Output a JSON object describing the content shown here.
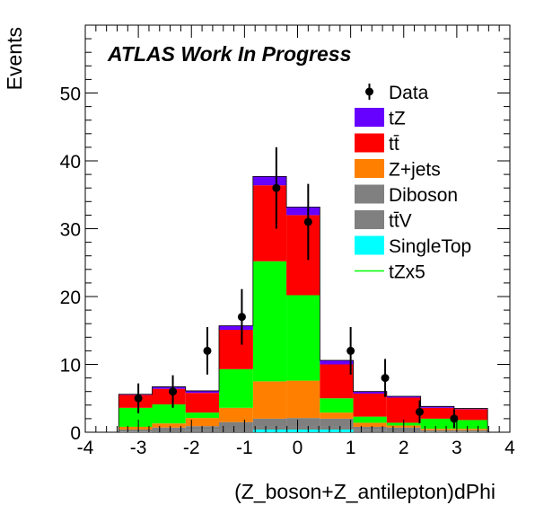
{
  "chart_data": {
    "type": "bar",
    "stacked": true,
    "title": "",
    "atlas_label": "ATLAS Work In Progress",
    "xlabel": "(Z_boson+Z_antilepton)dPhi",
    "ylabel": "Events",
    "xlim": [
      -4,
      4
    ],
    "ylim": [
      0,
      60
    ],
    "bin_edges": [
      -4.0,
      -3.37,
      -2.74,
      -2.11,
      -1.48,
      -0.84,
      -0.21,
      0.42,
      1.05,
      1.68,
      2.32,
      2.95,
      3.58,
      4.0
    ],
    "x_ticks": [
      -4,
      -3,
      -2,
      -1,
      0,
      1,
      2,
      3,
      4
    ],
    "x_tick_labels": [
      "-4",
      "-3",
      "-2",
      "-1",
      "0",
      "1",
      "2",
      "3",
      "4"
    ],
    "y_ticks": [
      0,
      10,
      20,
      30,
      40,
      50
    ],
    "y_tick_labels": [
      "0",
      "10",
      "20",
      "30",
      "40",
      "50"
    ],
    "series": [
      {
        "name": "SingleTop",
        "color": "#00ffff",
        "values": [
          0,
          0,
          0,
          0,
          0,
          0.4,
          0.4,
          0.4,
          0,
          0,
          0,
          0,
          0
        ]
      },
      {
        "name": "ttV",
        "color": "#808080",
        "values": [
          0,
          0.1,
          0.2,
          0.3,
          0.4,
          0.4,
          0.4,
          0.4,
          0.3,
          0.2,
          0.1,
          0.1,
          0
        ]
      },
      {
        "name": "Diboson",
        "color": "#7f7f7f",
        "values": [
          0,
          0.3,
          0.5,
          0.6,
          1.1,
          1.2,
          1.3,
          1.2,
          0.5,
          0.5,
          0.2,
          0.2,
          0
        ]
      },
      {
        "name": "Z+jets",
        "color": "#ff8000",
        "values": [
          0,
          0.4,
          0.6,
          1.2,
          2.1,
          5.5,
          5.5,
          0.9,
          0.6,
          0.3,
          0.2,
          0.2,
          0
        ]
      },
      {
        "name": "tZx5",
        "color": "#00ff00",
        "values": [
          0,
          2.8,
          2.8,
          0.8,
          5.7,
          17.7,
          12.6,
          2.1,
          0.9,
          0.4,
          1.5,
          1.3,
          0
        ]
      },
      {
        "name": "tt̄",
        "color": "#ff0000",
        "values": [
          0,
          1.9,
          2.3,
          2.9,
          5.8,
          11.2,
          11.8,
          5.0,
          3.4,
          3.7,
          1.6,
          1.6,
          0
        ]
      },
      {
        "name": "tZ",
        "color": "#6600ff",
        "values": [
          0,
          0.1,
          0.3,
          0.3,
          0.6,
          1.3,
          1.2,
          0.6,
          0.3,
          0.2,
          0.2,
          0.1,
          0
        ]
      }
    ],
    "data_points": [
      {
        "x": -3.0,
        "y": 5,
        "err": 2.2
      },
      {
        "x": -2.35,
        "y": 6,
        "err": 2.4
      },
      {
        "x": -1.7,
        "y": 12,
        "err": 3.5
      },
      {
        "x": -1.05,
        "y": 17,
        "err": 4.1
      },
      {
        "x": -0.4,
        "y": 36,
        "err": 6.0
      },
      {
        "x": 0.2,
        "y": 31,
        "err": 5.6
      },
      {
        "x": 1.0,
        "y": 12,
        "err": 3.5
      },
      {
        "x": 1.65,
        "y": 8,
        "err": 2.8
      },
      {
        "x": 2.3,
        "y": 3,
        "err": 1.7
      },
      {
        "x": 2.95,
        "y": 2,
        "err": 1.4
      }
    ],
    "legend": {
      "placement": "top-right",
      "entries": [
        {
          "label": "Data",
          "kind": "marker",
          "color": "#000000"
        },
        {
          "label": "tZ",
          "kind": "box",
          "color": "#6600ff"
        },
        {
          "label": "tt̄",
          "kind": "box",
          "color": "#ff0000"
        },
        {
          "label": "Z+jets",
          "kind": "box",
          "color": "#ff8000"
        },
        {
          "label": "Diboson",
          "kind": "box",
          "color": "#808080"
        },
        {
          "label": "tt̄V",
          "kind": "box",
          "color": "#808080"
        },
        {
          "label": "SingleTop",
          "kind": "box",
          "color": "#00ffff"
        },
        {
          "label": "tZx5",
          "kind": "line",
          "color": "#00ff00"
        }
      ]
    }
  }
}
